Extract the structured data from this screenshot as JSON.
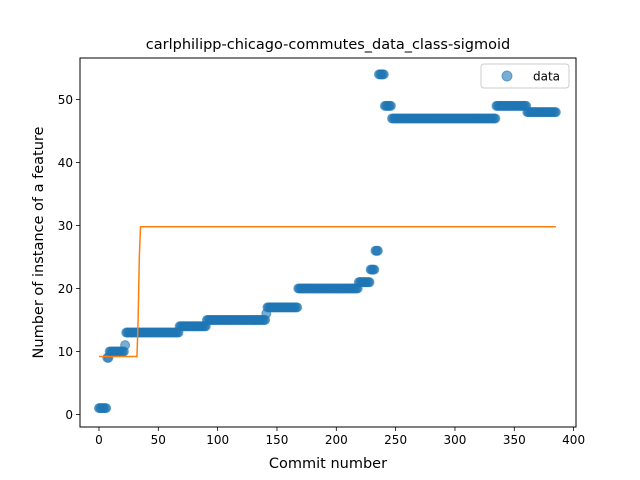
{
  "chart_data": {
    "type": "scatter",
    "title": "carlphilipp-chicago-commutes_data_class-sigmoid",
    "xlabel": "Commit number",
    "ylabel": "Number of instance of a feature",
    "xlim": [
      -16,
      402
    ],
    "ylim": [
      -2,
      56.6
    ],
    "xticks": [
      0,
      50,
      100,
      150,
      200,
      250,
      300,
      350,
      400
    ],
    "yticks": [
      0,
      10,
      20,
      30,
      40,
      50
    ],
    "grid": false,
    "legend": {
      "position": "top-right",
      "entries": [
        "data"
      ]
    },
    "colors": {
      "data": "#1f77b4",
      "fit": "#ff7f0e"
    },
    "series": [
      {
        "name": "data",
        "kind": "scatter",
        "segments": [
          {
            "from": 0,
            "to": 6,
            "y": 1
          },
          {
            "from": 7,
            "to": 8,
            "y": 9
          },
          {
            "from": 9,
            "to": 21,
            "y": 10
          },
          {
            "from": 22,
            "to": 22,
            "y": 11
          },
          {
            "from": 23,
            "to": 67,
            "y": 13
          },
          {
            "from": 68,
            "to": 90,
            "y": 14
          },
          {
            "from": 91,
            "to": 140,
            "y": 15
          },
          {
            "from": 141,
            "to": 141,
            "y": 16
          },
          {
            "from": 142,
            "to": 167,
            "y": 17
          },
          {
            "from": 168,
            "to": 218,
            "y": 20
          },
          {
            "from": 219,
            "to": 228,
            "y": 21
          },
          {
            "from": 229,
            "to": 232,
            "y": 23
          },
          {
            "from": 233,
            "to": 235,
            "y": 26
          },
          {
            "from": 236,
            "to": 240,
            "y": 54
          },
          {
            "from": 241,
            "to": 246,
            "y": 49
          },
          {
            "from": 247,
            "to": 334,
            "y": 47
          },
          {
            "from": 335,
            "to": 360,
            "y": 49
          },
          {
            "from": 361,
            "to": 385,
            "y": 48
          }
        ]
      },
      {
        "kind": "line",
        "x": [
          0,
          32,
          33,
          34,
          35,
          385
        ],
        "y": [
          9.2,
          9.2,
          15,
          25,
          29.8,
          29.8
        ]
      }
    ]
  }
}
